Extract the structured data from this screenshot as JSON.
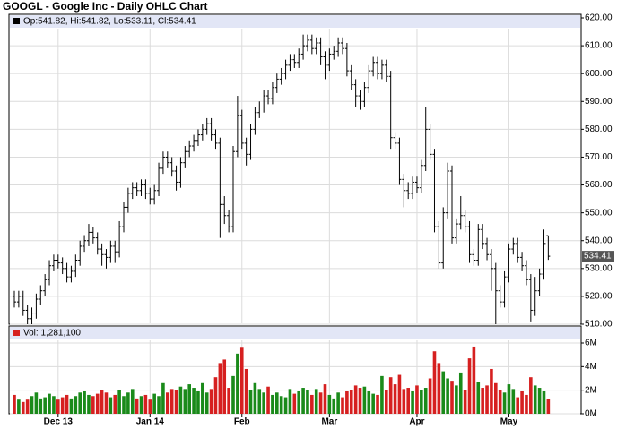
{
  "chart_data": {
    "type": "ohlc",
    "title": "GOOGL - Google Inc - Daily OHLC Chart",
    "price_legend": "Op:541.82, Hi:541.82, Lo:533.11, Cl:534.41",
    "volume_legend": "Vol: 1,281,100",
    "categories": [
      null,
      null,
      null,
      null,
      null,
      null,
      null,
      null,
      null,
      null,
      "Dec 13",
      null,
      null,
      null,
      null,
      null,
      null,
      null,
      null,
      null,
      null,
      null,
      null,
      null,
      null,
      null,
      null,
      null,
      null,
      null,
      null,
      "Jan 14",
      null,
      null,
      null,
      null,
      null,
      null,
      null,
      null,
      null,
      null,
      null,
      null,
      null,
      null,
      null,
      null,
      null,
      null,
      null,
      null,
      "Feb",
      null,
      null,
      null,
      null,
      null,
      null,
      null,
      null,
      null,
      null,
      null,
      null,
      null,
      null,
      null,
      null,
      null,
      null,
      null,
      "Mar",
      null,
      null,
      null,
      null,
      null,
      null,
      null,
      null,
      null,
      null,
      null,
      null,
      null,
      null,
      null,
      null,
      null,
      null,
      null,
      "Apr",
      null,
      null,
      null,
      null,
      null,
      null,
      null,
      null,
      null,
      null,
      null,
      null,
      null,
      null,
      null,
      null,
      null,
      null,
      null,
      null,
      "May",
      null,
      null,
      null,
      null,
      null,
      null,
      null,
      null,
      null
    ],
    "open": [
      520,
      518,
      520,
      515,
      512,
      514,
      519,
      522,
      526,
      531,
      533,
      532,
      530,
      527,
      529,
      533,
      538,
      540,
      543,
      541,
      537,
      535,
      534,
      538,
      536,
      545,
      552,
      557,
      559,
      558,
      560,
      557,
      555,
      558,
      566,
      570,
      568,
      565,
      561,
      568,
      572,
      574,
      576,
      578,
      580,
      582,
      578,
      575,
      553,
      549,
      545,
      572,
      585,
      575,
      571,
      580,
      586,
      588,
      592,
      591,
      595,
      598,
      600,
      603,
      605,
      604,
      607,
      610,
      612,
      609,
      611,
      606,
      603,
      607,
      608,
      611,
      609,
      601,
      596,
      592,
      590,
      595,
      601,
      604,
      600,
      603,
      599,
      577,
      575,
      562,
      558,
      557,
      561,
      559,
      567,
      580,
      571,
      545,
      532,
      550,
      565,
      541,
      546,
      549,
      545,
      535,
      533,
      544,
      539,
      535,
      530,
      522,
      518,
      527,
      537,
      539,
      534,
      531,
      526,
      515,
      522,
      528,
      541.82
    ],
    "high": [
      522,
      522,
      522,
      517,
      516,
      521,
      524,
      528,
      533,
      535,
      535,
      534,
      532,
      531,
      535,
      540,
      542,
      546,
      545,
      543,
      539,
      537,
      540,
      540,
      547,
      554,
      559,
      561,
      561,
      562,
      562,
      559,
      560,
      568,
      572,
      572,
      570,
      567,
      570,
      574,
      576,
      578,
      580,
      582,
      584,
      584,
      580,
      577,
      556,
      551,
      574,
      592,
      587,
      577,
      582,
      588,
      590,
      594,
      594,
      597,
      600,
      602,
      605,
      607,
      607,
      609,
      614,
      614,
      614,
      613,
      613,
      608,
      609,
      610,
      613,
      613,
      611,
      603,
      598,
      594,
      597,
      603,
      606,
      606,
      605,
      605,
      601,
      579,
      577,
      564,
      561,
      563,
      563,
      569,
      588,
      582,
      573,
      547,
      552,
      568,
      567,
      548,
      556,
      551,
      547,
      537,
      546,
      546,
      541,
      537,
      532,
      524,
      529,
      539,
      541,
      541,
      536,
      533,
      528,
      527,
      530,
      544,
      541.82
    ],
    "low": [
      516,
      516,
      513,
      510,
      510,
      512,
      517,
      520,
      524,
      529,
      530,
      528,
      525,
      525,
      527,
      531,
      536,
      538,
      539,
      535,
      531,
      530,
      532,
      532,
      534,
      543,
      550,
      555,
      556,
      556,
      555,
      553,
      553,
      556,
      564,
      566,
      563,
      558,
      559,
      566,
      570,
      572,
      574,
      576,
      578,
      576,
      573,
      541,
      546,
      543,
      543,
      570,
      573,
      567,
      569,
      578,
      584,
      586,
      589,
      589,
      593,
      596,
      598,
      601,
      602,
      602,
      605,
      608,
      607,
      607,
      603,
      598,
      601,
      605,
      606,
      607,
      599,
      594,
      588,
      587,
      588,
      593,
      599,
      598,
      598,
      597,
      573,
      573,
      560,
      552,
      555,
      555,
      557,
      557,
      565,
      569,
      543,
      530,
      530,
      548,
      539,
      539,
      544,
      543,
      532,
      531,
      531,
      537,
      533,
      522,
      510,
      516,
      516,
      525,
      535,
      532,
      529,
      524,
      511,
      513,
      520,
      526,
      533.11
    ],
    "close": [
      518,
      520,
      515,
      512,
      514,
      519,
      522,
      526,
      531,
      533,
      532,
      530,
      527,
      529,
      533,
      538,
      540,
      543,
      541,
      537,
      535,
      534,
      538,
      536,
      545,
      552,
      557,
      559,
      558,
      560,
      557,
      555,
      558,
      566,
      570,
      568,
      565,
      561,
      568,
      572,
      574,
      576,
      578,
      580,
      582,
      578,
      575,
      553,
      549,
      545,
      572,
      585,
      575,
      571,
      580,
      586,
      588,
      592,
      591,
      595,
      598,
      600,
      603,
      605,
      604,
      607,
      610,
      612,
      609,
      611,
      606,
      603,
      607,
      608,
      611,
      609,
      601,
      596,
      592,
      590,
      595,
      601,
      604,
      600,
      603,
      599,
      577,
      575,
      562,
      558,
      557,
      561,
      559,
      567,
      580,
      571,
      545,
      532,
      550,
      565,
      541,
      546,
      549,
      545,
      535,
      533,
      544,
      539,
      535,
      530,
      522,
      518,
      527,
      537,
      539,
      534,
      531,
      526,
      515,
      522,
      528,
      539,
      534.41
    ],
    "volume": [
      1.6,
      1.2,
      1.0,
      1.2,
      1.5,
      1.8,
      1.3,
      1.4,
      1.7,
      1.5,
      1.2,
      1.4,
      1.6,
      1.3,
      1.5,
      1.8,
      1.9,
      1.6,
      1.5,
      1.7,
      2.0,
      1.8,
      1.4,
      1.6,
      2.0,
      1.5,
      1.8,
      2.1,
      1.3,
      1.5,
      1.6,
      1.2,
      1.7,
      1.5,
      2.6,
      1.8,
      2.1,
      2.0,
      2.3,
      2.1,
      2.5,
      2.2,
      1.9,
      2.6,
      1.8,
      2.1,
      3.1,
      4.3,
      4.6,
      2.2,
      3.2,
      5.1,
      5.6,
      3.8,
      2.0,
      2.6,
      2.1,
      1.8,
      2.3,
      1.6,
      1.8,
      1.5,
      1.4,
      2.1,
      1.7,
      1.9,
      2.2,
      2.0,
      1.6,
      2.1,
      1.8,
      2.5,
      1.6,
      1.3,
      1.8,
      1.4,
      1.9,
      2.0,
      2.4,
      2.2,
      2.3,
      1.9,
      1.7,
      1.6,
      3.2,
      2.0,
      3.1,
      2.5,
      3.3,
      2.1,
      2.2,
      1.9,
      2.4,
      2.0,
      2.2,
      3.0,
      5.3,
      4.3,
      3.6,
      3.0,
      2.8,
      2.4,
      3.5,
      2.0,
      4.7,
      5.7,
      2.7,
      2.2,
      2.4,
      3.8,
      2.6,
      2.0,
      1.8,
      2.5,
      2.1,
      1.4,
      1.9,
      1.6,
      3.1,
      2.4,
      2.2,
      1.9,
      1.2811
    ],
    "ylim": [
      510,
      620
    ],
    "yticks": [
      {
        "value": 510,
        "label": "510.00"
      },
      {
        "value": 520,
        "label": "520.00"
      },
      {
        "value": 530,
        "label": "530.00"
      },
      {
        "value": 540,
        "label": "540.00"
      },
      {
        "value": 550,
        "label": "550.00"
      },
      {
        "value": 560,
        "label": "560.00"
      },
      {
        "value": 570,
        "label": "570.00"
      },
      {
        "value": 580,
        "label": "580.00"
      },
      {
        "value": 590,
        "label": "590.00"
      },
      {
        "value": 600,
        "label": "600.00"
      },
      {
        "value": 610,
        "label": "610.00"
      },
      {
        "value": 620,
        "label": "620.00"
      }
    ],
    "y2lim": [
      0,
      6
    ],
    "y2ticks": [
      {
        "value": 0,
        "label": "0M"
      },
      {
        "value": 2,
        "label": "2M"
      },
      {
        "value": 4,
        "label": "4M"
      },
      {
        "value": 6,
        "label": "6M"
      }
    ],
    "last_price": {
      "value": 534.41,
      "label": "534.41"
    },
    "bar_color": "#000000",
    "up_color": "#1a8a1a",
    "down_color": "#d62020",
    "grid": true
  }
}
